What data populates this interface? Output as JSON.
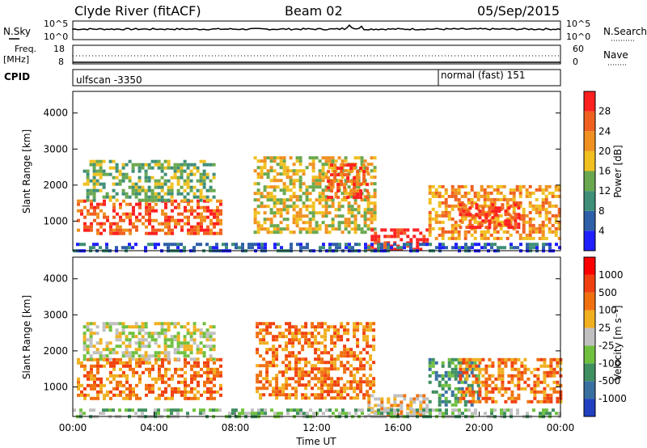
{
  "header": {
    "station": "Clyde River (fitACF)",
    "beam": "Beam 02",
    "date": "05/Sep/2015"
  },
  "top_panels": {
    "nsky_label": "N.Sky",
    "nsky_ticks": [
      "10^5",
      "10^0"
    ],
    "nsearch_label": "N.Search",
    "nsearch_ticks": [
      "10^5",
      "10^0"
    ],
    "freq_label": "Freq.",
    "freq_unit": "[MHz]",
    "freq_ticks": [
      "18",
      "8"
    ],
    "nave_label": "Nave",
    "nave_ticks": [
      "60",
      "0"
    ],
    "cpid_label": "CPID",
    "cpid_segments": [
      {
        "label": "ulfscan -3350",
        "start_hour": 0
      },
      {
        "label": "normal (fast) 151",
        "start_hour": 18.1
      }
    ]
  },
  "chart_data": [
    {
      "type": "heatmap",
      "name": "power",
      "ylabel": "Slant Range [km]",
      "xlim_hours": [
        0,
        24
      ],
      "ylim_km": [
        180,
        4600
      ],
      "yticks": [
        "1000",
        "2000",
        "3000",
        "4000"
      ],
      "colorbar": {
        "label": "Power [dB]",
        "tick_labels": [
          "28",
          "24",
          "20",
          "16",
          "12",
          "8",
          "4"
        ],
        "colors": [
          "#1f1fff",
          "#2f5fa8",
          "#3f8f78",
          "#6aa84f",
          "#f0c020",
          "#f09020",
          "#f06020",
          "#ff2020"
        ]
      },
      "echo_regions": [
        {
          "x": [
            0.2,
            7.3
          ],
          "y": [
            700,
            1600
          ],
          "level": 6
        },
        {
          "x": [
            0.5,
            7.0
          ],
          "y": [
            1600,
            2700
          ],
          "level": 3
        },
        {
          "x": [
            8.9,
            14.8
          ],
          "y": [
            700,
            2800
          ],
          "level": 4
        },
        {
          "x": [
            12.5,
            14.5
          ],
          "y": [
            1700,
            2600
          ],
          "level": 6
        },
        {
          "x": [
            14.5,
            17.5
          ],
          "y": [
            250,
            800
          ],
          "level": 7
        },
        {
          "x": [
            17.5,
            24.0
          ],
          "y": [
            500,
            2000
          ],
          "level": 5
        },
        {
          "x": [
            19.0,
            22.0
          ],
          "y": [
            800,
            1500
          ],
          "level": 7
        },
        {
          "x": [
            0.0,
            24.0
          ],
          "y": [
            180,
            400
          ],
          "level": 1
        }
      ]
    },
    {
      "type": "heatmap",
      "name": "velocity",
      "ylabel": "Slant Range [km]",
      "xlabel": "Time UT",
      "xlim_hours": [
        0,
        24
      ],
      "ylim_km": [
        180,
        4600
      ],
      "xtick_labels": [
        "00:00",
        "04:00",
        "08:00",
        "12:00",
        "16:00",
        "20:00",
        "00:00"
      ],
      "yticks": [
        "1000",
        "2000",
        "3000",
        "4000"
      ],
      "colorbar": {
        "label": "Velocity [m s⁻¹]",
        "tick_labels": [
          "1000",
          "500",
          "100",
          "25",
          "-25",
          "-100",
          "-500",
          "-1000"
        ],
        "colors": [
          "#2040c0",
          "#3a70a0",
          "#3f8f60",
          "#70c040",
          "#c0c0c0",
          "#f0b020",
          "#f07010",
          "#f04010",
          "#ff0000"
        ]
      },
      "echo_regions": [
        {
          "x": [
            0.2,
            7.3
          ],
          "y": [
            700,
            1800
          ],
          "level": 6
        },
        {
          "x": [
            0.5,
            7.0
          ],
          "y": [
            1800,
            2800
          ],
          "level": 4
        },
        {
          "x": [
            9.0,
            14.8
          ],
          "y": [
            700,
            2800
          ],
          "level": 6
        },
        {
          "x": [
            14.5,
            17.5
          ],
          "y": [
            250,
            800
          ],
          "level": 5
        },
        {
          "x": [
            17.5,
            20.0
          ],
          "y": [
            500,
            1800
          ],
          "level": 2
        },
        {
          "x": [
            19.0,
            24.0
          ],
          "y": [
            600,
            1800
          ],
          "level": 6
        },
        {
          "x": [
            0.0,
            24.0
          ],
          "y": [
            180,
            400
          ],
          "level": 3
        }
      ]
    }
  ]
}
